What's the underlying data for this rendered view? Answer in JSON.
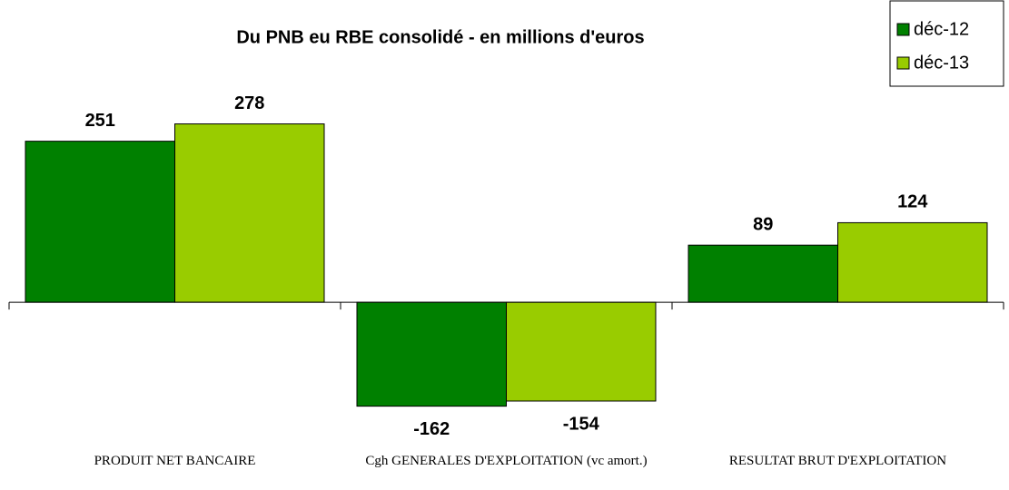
{
  "chart_data": {
    "type": "bar",
    "title": "Du PNB eu RBE consolidé - en millions d'euros",
    "categories": [
      "PRODUIT NET BANCAIRE",
      "Cgh GENERALES D'EXPLOITATION (vc amort.)",
      "RESULTAT BRUT D'EXPLOITATION"
    ],
    "series": [
      {
        "name": "déc-12",
        "color": "#008000",
        "values": [
          251,
          -162,
          89
        ]
      },
      {
        "name": "déc-13",
        "color": "#99cc00",
        "values": [
          278,
          -154,
          124
        ]
      }
    ],
    "ylim": [
      -200,
      300
    ],
    "legend": "top-right"
  }
}
